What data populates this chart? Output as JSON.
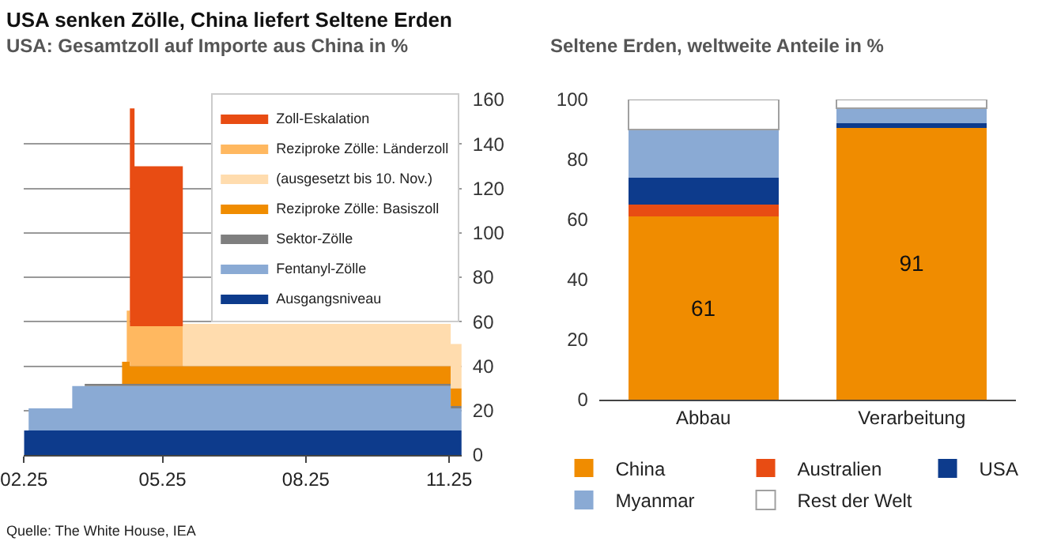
{
  "chart_data": [
    {
      "type": "area",
      "title": "USA senken Zölle, China liefert Seltene Erden",
      "subtitle": "USA: Gesamtzoll auf Importe aus China in %",
      "stacked": true,
      "x": [
        "2025-02-01",
        "2025-02-04",
        "2025-02-04",
        "2025-03-04",
        "2025-03-04",
        "2025-03-12",
        "2025-03-12",
        "2025-04-05",
        "2025-04-05",
        "2025-04-08",
        "2025-04-08",
        "2025-04-10",
        "2025-04-10",
        "2025-04-13",
        "2025-04-13",
        "2025-05-04",
        "2025-05-04",
        "2025-05-14",
        "2025-05-14",
        "2025-11-02",
        "2025-11-02",
        "2025-11-09"
      ],
      "series": [
        {
          "name": "Ausgangsniveau",
          "color": "#0d3b8c",
          "values": [
            11,
            11,
            11,
            11,
            11,
            11,
            11,
            11,
            11,
            11,
            11,
            11,
            11,
            11,
            11,
            11,
            11,
            11,
            11,
            11,
            11,
            11
          ]
        },
        {
          "name": "Fentanyl-Zölle",
          "color": "#8aaad4",
          "values": [
            0,
            0,
            10,
            10,
            20,
            20,
            20,
            20,
            20,
            20,
            20,
            20,
            20,
            20,
            20,
            20,
            20,
            20,
            20,
            20,
            10,
            10
          ]
        },
        {
          "name": "Sektor-Zölle",
          "color": "#7f7f7f",
          "values": [
            0,
            0,
            0,
            0,
            0,
            0,
            1,
            1,
            1,
            1,
            1,
            1,
            1,
            1,
            1,
            1,
            1,
            1,
            1,
            1,
            1,
            1
          ]
        },
        {
          "name": "Reziproke Zölle: Basiszoll",
          "color": "#f08c00",
          "values": [
            0,
            0,
            0,
            0,
            0,
            0,
            0,
            0,
            10,
            10,
            10,
            10,
            8,
            8,
            8,
            8,
            8,
            8,
            8,
            8,
            8,
            8
          ]
        },
        {
          "name": "(ausgesetzt bis 10. Nov.)",
          "color": "#ffdcae",
          "values": [
            0,
            0,
            0,
            0,
            0,
            0,
            0,
            0,
            0,
            0,
            0,
            0,
            0,
            0,
            0,
            0,
            0,
            0,
            19,
            19,
            20,
            20
          ]
        },
        {
          "name": "Reziproke Zölle: Länderzoll",
          "color": "#ffb860",
          "values": [
            0,
            0,
            0,
            0,
            0,
            0,
            0,
            0,
            0,
            0,
            23,
            23,
            18,
            18,
            18,
            18,
            18,
            18,
            0,
            0,
            0,
            0
          ]
        },
        {
          "name": "Zoll-Eskalation",
          "color": "#e84c13",
          "values": [
            0,
            0,
            0,
            0,
            0,
            0,
            0,
            0,
            0,
            0,
            0,
            0,
            98,
            98,
            72,
            72,
            72,
            72,
            0,
            0,
            0,
            0
          ]
        }
      ],
      "xlim": [
        "2025-02-01",
        "2025-11-09"
      ],
      "xticks": [
        {
          "value": "2025-02-01",
          "label": "02.25"
        },
        {
          "value": "2025-05-01",
          "label": "05.25"
        },
        {
          "value": "2025-08-01",
          "label": "08.25"
        },
        {
          "value": "2025-11-01",
          "label": "11.25"
        }
      ],
      "ylim": [
        0,
        160
      ],
      "yticks": [
        0,
        20,
        40,
        60,
        80,
        100,
        120,
        140,
        160
      ],
      "grid": "y",
      "legend": "top right",
      "annotations": [
        "Quelle: The White House, IEA"
      ]
    },
    {
      "type": "bar",
      "title": "Seltene Erden, weltweite Anteile in %",
      "stacked": true,
      "categories": [
        "Abbau",
        "Verarbeitung"
      ],
      "series": [
        {
          "name": "China",
          "color": "#f08c00",
          "values": [
            61,
            91
          ],
          "value_labels": [
            "61",
            "91"
          ]
        },
        {
          "name": "Australien",
          "color": "#e84c13",
          "values": [
            4,
            0
          ]
        },
        {
          "name": "USA",
          "color": "#0d3b8c",
          "values": [
            9,
            1
          ]
        },
        {
          "name": "Myanmar",
          "color": "#8aaad4",
          "values": [
            16,
            5
          ]
        },
        {
          "name": "Rest der Welt",
          "color": "#ffffff",
          "values": [
            10,
            3
          ]
        }
      ],
      "ylim": [
        0,
        100
      ],
      "yticks": [
        0,
        20,
        40,
        60,
        80,
        100
      ],
      "grid": false,
      "legend": "bottom"
    }
  ]
}
